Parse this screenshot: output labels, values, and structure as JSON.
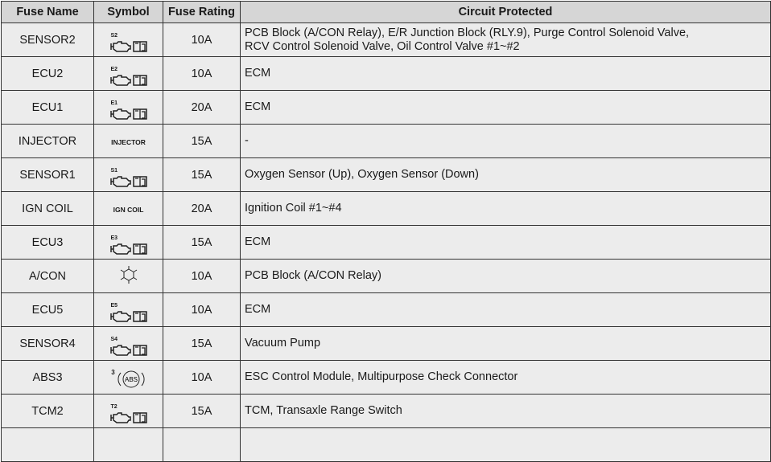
{
  "headers": [
    "Fuse Name",
    "Symbol",
    "Fuse Rating",
    "Circuit Protected"
  ],
  "rows": [
    {
      "name": "SENSOR2",
      "symbol": {
        "type": "engine-book",
        "label": "S2"
      },
      "rating": "10A",
      "circuit": [
        "PCB Block (A/CON Relay), E/R Junction Block (RLY.9), Purge Control Solenoid Valve,",
        "RCV Control Solenoid Valve, Oil Control Valve #1~#2"
      ]
    },
    {
      "name": "ECU2",
      "symbol": {
        "type": "engine-book",
        "label": "E2"
      },
      "rating": "10A",
      "circuit": [
        "ECM"
      ]
    },
    {
      "name": "ECU1",
      "symbol": {
        "type": "engine-book",
        "label": "E1"
      },
      "rating": "20A",
      "circuit": [
        "ECM"
      ]
    },
    {
      "name": "INJECTOR",
      "symbol": {
        "type": "text",
        "label": "INJECTOR"
      },
      "rating": "15A",
      "circuit": [
        "-"
      ]
    },
    {
      "name": "SENSOR1",
      "symbol": {
        "type": "engine-book",
        "label": "S1"
      },
      "rating": "15A",
      "circuit": [
        "Oxygen Sensor (Up), Oxygen Sensor (Down)"
      ]
    },
    {
      "name": "IGN COIL",
      "symbol": {
        "type": "text",
        "label": "IGN COIL"
      },
      "rating": "20A",
      "circuit": [
        "Ignition Coil #1~#4"
      ]
    },
    {
      "name": "ECU3",
      "symbol": {
        "type": "engine-book",
        "label": "E3"
      },
      "rating": "15A",
      "circuit": [
        "ECM"
      ]
    },
    {
      "name": "A/CON",
      "symbol": {
        "type": "snowflake",
        "label": ""
      },
      "rating": "10A",
      "circuit": [
        "PCB Block (A/CON Relay)"
      ]
    },
    {
      "name": "ECU5",
      "symbol": {
        "type": "engine-book",
        "label": "E5"
      },
      "rating": "10A",
      "circuit": [
        "ECM"
      ]
    },
    {
      "name": "SENSOR4",
      "symbol": {
        "type": "engine-book",
        "label": "S4"
      },
      "rating": "15A",
      "circuit": [
        "Vacuum Pump"
      ]
    },
    {
      "name": "ABS3",
      "symbol": {
        "type": "abs",
        "label": "3",
        "text": "ABS"
      },
      "rating": "10A",
      "circuit": [
        "ESC Control Module, Multipurpose Check Connector"
      ]
    },
    {
      "name": "TCM2",
      "symbol": {
        "type": "engine-book",
        "label": "T2"
      },
      "rating": "15A",
      "circuit": [
        "TCM, Transaxle Range Switch"
      ]
    }
  ]
}
